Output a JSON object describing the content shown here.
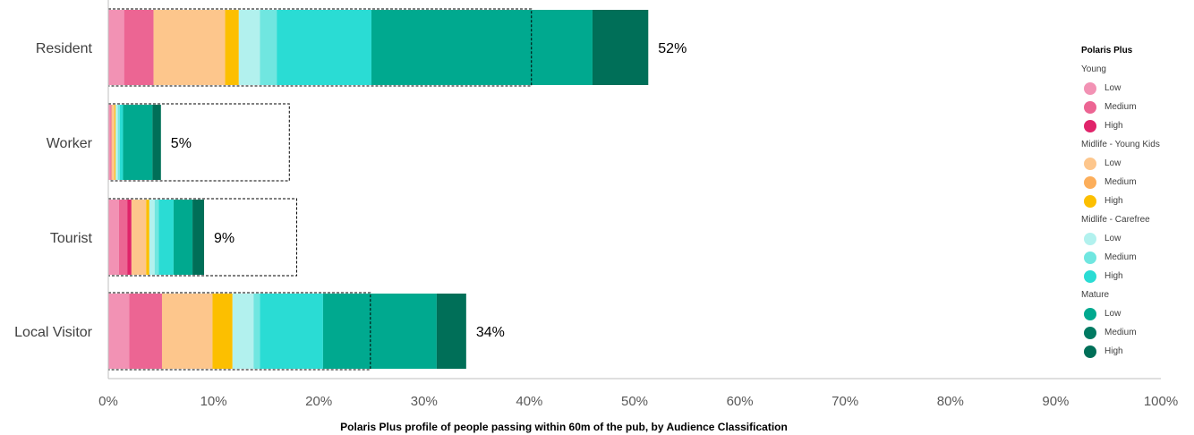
{
  "chart_data": {
    "type": "bar",
    "orientation": "horizontal",
    "stacked": true,
    "title": "",
    "xlabel": "Polaris Plus profile of people passing within 60m of the pub, by Audience Classification",
    "ylabel": "",
    "xlim": [
      0,
      100
    ],
    "x_tick_labels": [
      "0%",
      "10%",
      "20%",
      "30%",
      "40%",
      "50%",
      "60%",
      "70%",
      "80%",
      "90%",
      "100%"
    ],
    "categories": [
      "Resident",
      "Worker",
      "Tourist",
      "Local Visitor"
    ],
    "totals_labels": [
      "52%",
      "5%",
      "9%",
      "34%"
    ],
    "benchmark_outline": {
      "values": [
        40.2,
        17.2,
        17.9,
        24.9
      ],
      "style": "dashed-outline"
    },
    "legend": {
      "title": "Polaris Plus",
      "placement": "right",
      "groups": [
        {
          "name": "Young",
          "items": [
            "Low",
            "Medium",
            "High"
          ]
        },
        {
          "name": "Midlife - Young Kids",
          "items": [
            "Low",
            "Medium",
            "High"
          ]
        },
        {
          "name": "Midlife - Carefree",
          "items": [
            "Low",
            "Medium",
            "High"
          ]
        },
        {
          "name": "Mature",
          "items": [
            "Low",
            "Medium",
            "High"
          ]
        }
      ]
    },
    "series": [
      {
        "group": "Young",
        "level": "Low",
        "color": "#f292b4",
        "values": [
          1.5,
          0.2,
          1.0,
          2.0
        ]
      },
      {
        "group": "Young",
        "level": "Medium",
        "color": "#ec6593",
        "values": [
          2.8,
          0.1,
          0.8,
          3.1
        ]
      },
      {
        "group": "Young",
        "level": "High",
        "color": "#e0246a",
        "values": [
          0.0,
          0.0,
          0.4,
          0.0
        ]
      },
      {
        "group": "Midlife - Young Kids",
        "level": "Low",
        "color": "#fdc68c",
        "values": [
          6.8,
          0.3,
          1.4,
          4.8
        ]
      },
      {
        "group": "Midlife - Young Kids",
        "level": "Medium",
        "color": "#fcae5b",
        "values": [
          0.0,
          0.0,
          0.0,
          0.0
        ]
      },
      {
        "group": "Midlife - Young Kids",
        "level": "High",
        "color": "#fcbf00",
        "values": [
          1.3,
          0.1,
          0.3,
          1.9
        ]
      },
      {
        "group": "Midlife - Carefree",
        "level": "Low",
        "color": "#b2f1ee",
        "values": [
          2.0,
          0.2,
          0.5,
          2.0
        ]
      },
      {
        "group": "Midlife - Carefree",
        "level": "Medium",
        "color": "#70e6e0",
        "values": [
          1.6,
          0.2,
          0.4,
          0.6
        ]
      },
      {
        "group": "Midlife - Carefree",
        "level": "High",
        "color": "#2adcd4",
        "values": [
          9.0,
          0.3,
          1.4,
          6.0
        ]
      },
      {
        "group": "Mature",
        "level": "Low",
        "color": "#00a98f",
        "values": [
          21.0,
          2.8,
          1.8,
          10.8
        ]
      },
      {
        "group": "Mature",
        "level": "Medium",
        "color": "#007a62",
        "values": [
          0.0,
          0.0,
          0.0,
          0.0
        ]
      },
      {
        "group": "Mature",
        "level": "High",
        "color": "#006f58",
        "values": [
          5.3,
          0.8,
          1.1,
          2.8
        ]
      }
    ],
    "grid": false
  }
}
